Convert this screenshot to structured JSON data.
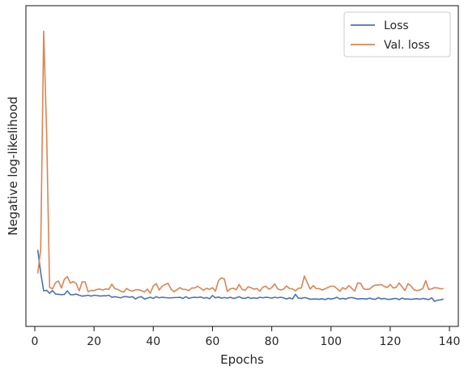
{
  "chart_data": {
    "type": "line",
    "title": "",
    "xlabel": "Epochs",
    "ylabel": "Negative log-likelihood",
    "xlim": [
      -3,
      143
    ],
    "ylim": [
      0,
      1
    ],
    "x_ticks": [
      0,
      20,
      40,
      60,
      80,
      100,
      120,
      140
    ],
    "x_tick_labels": [
      "0",
      "20",
      "40",
      "60",
      "80",
      "100",
      "120",
      "140"
    ],
    "y_ticks": [],
    "y_scale": "linear (no tick labels shown)",
    "grid": false,
    "legend_position": "top-right",
    "series": [
      {
        "name": "Loss",
        "color": "#4c72b0",
        "x_start": 1,
        "values": [
          0.227,
          0.148,
          0.086,
          0.088,
          0.078,
          0.087,
          0.075,
          0.074,
          0.073,
          0.074,
          0.086,
          0.073,
          0.073,
          0.075,
          0.071,
          0.068,
          0.069,
          0.071,
          0.068,
          0.071,
          0.07,
          0.068,
          0.069,
          0.069,
          0.071,
          0.064,
          0.066,
          0.064,
          0.062,
          0.066,
          0.066,
          0.064,
          0.066,
          0.058,
          0.064,
          0.066,
          0.058,
          0.061,
          0.064,
          0.06,
          0.066,
          0.062,
          0.064,
          0.063,
          0.062,
          0.062,
          0.063,
          0.063,
          0.064,
          0.06,
          0.066,
          0.06,
          0.063,
          0.064,
          0.063,
          0.065,
          0.061,
          0.063,
          0.059,
          0.07,
          0.062,
          0.065,
          0.061,
          0.063,
          0.061,
          0.064,
          0.06,
          0.062,
          0.066,
          0.061,
          0.06,
          0.064,
          0.06,
          0.062,
          0.06,
          0.064,
          0.062,
          0.064,
          0.063,
          0.061,
          0.064,
          0.062,
          0.064,
          0.062,
          0.058,
          0.062,
          0.058,
          0.074,
          0.061,
          0.06,
          0.063,
          0.061,
          0.057,
          0.058,
          0.058,
          0.057,
          0.059,
          0.056,
          0.06,
          0.058,
          0.06,
          0.064,
          0.058,
          0.06,
          0.058,
          0.062,
          0.063,
          0.061,
          0.058,
          0.059,
          0.059,
          0.058,
          0.061,
          0.058,
          0.057,
          0.063,
          0.058,
          0.06,
          0.057,
          0.057,
          0.059,
          0.06,
          0.056,
          0.061,
          0.058,
          0.058,
          0.057,
          0.058,
          0.059,
          0.057,
          0.06,
          0.058,
          0.056,
          0.062,
          0.05,
          0.054,
          0.055,
          0.058
        ]
      },
      {
        "name": "Val. loss",
        "color": "#dd8452",
        "x_start": 1,
        "values": [
          0.146,
          0.229,
          0.979,
          0.628,
          0.098,
          0.093,
          0.114,
          0.12,
          0.096,
          0.126,
          0.135,
          0.113,
          0.118,
          0.111,
          0.086,
          0.117,
          0.117,
          0.083,
          0.088,
          0.087,
          0.091,
          0.092,
          0.089,
          0.093,
          0.091,
          0.109,
          0.094,
          0.091,
          0.085,
          0.082,
          0.094,
          0.088,
          0.085,
          0.09,
          0.09,
          0.087,
          0.082,
          0.092,
          0.078,
          0.103,
          0.111,
          0.089,
          0.102,
          0.108,
          0.112,
          0.092,
          0.083,
          0.09,
          0.097,
          0.091,
          0.091,
          0.087,
          0.096,
          0.096,
          0.102,
          0.095,
          0.088,
          0.095,
          0.091,
          0.097,
          0.085,
          0.121,
          0.131,
          0.127,
          0.084,
          0.093,
          0.095,
          0.09,
          0.108,
          0.091,
          0.088,
          0.1,
          0.097,
          0.092,
          0.094,
          0.085,
          0.099,
          0.102,
          0.092,
          0.097,
          0.11,
          0.093,
          0.089,
          0.092,
          0.103,
          0.094,
          0.093,
          0.086,
          0.095,
          0.096,
          0.137,
          0.114,
          0.092,
          0.104,
          0.094,
          0.094,
          0.089,
          0.093,
          0.098,
          0.102,
          0.102,
          0.094,
          0.085,
          0.097,
          0.092,
          0.104,
          0.095,
          0.085,
          0.113,
          0.112,
          0.093,
          0.091,
          0.092,
          0.101,
          0.106,
          0.106,
          0.108,
          0.101,
          0.098,
          0.108,
          0.096,
          0.098,
          0.113,
          0.1,
          0.087,
          0.111,
          0.103,
          0.09,
          0.087,
          0.089,
          0.094,
          0.121,
          0.091,
          0.093,
          0.097,
          0.096,
          0.093,
          0.094
        ]
      }
    ]
  }
}
